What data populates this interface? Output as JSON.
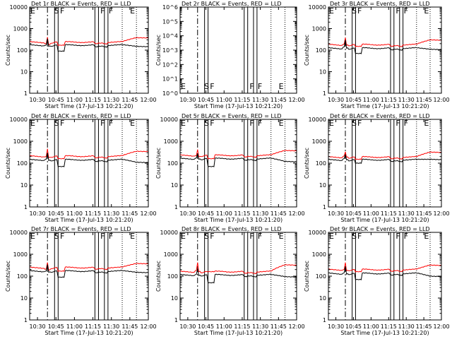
{
  "colors": {
    "background": "#ffffff",
    "events": "#000000",
    "lld": "#ff0000",
    "axis": "#000000"
  },
  "chart_data": [
    {
      "type": "line",
      "detector": "1r",
      "title": "Det 1r  BLACK = Events, RED = LLD",
      "xlabel": "Start Time (17-Jul-13 10:21:20)",
      "ylabel": "Counts/sec",
      "scale": "log",
      "ylim": [
        1,
        10000
      ],
      "yticks": [
        "1",
        "10",
        "100",
        "1000",
        "10000"
      ],
      "xlim_min": [
        0,
        100
      ],
      "xticks": [
        "10:30",
        "10:45",
        "11:00",
        "11:15",
        "11:30",
        "11:45",
        "12:00"
      ],
      "markers": [
        {
          "label": "E",
          "x": 0
        },
        {
          "label": "S",
          "x": 20
        },
        {
          "label": "F",
          "x": 25
        },
        {
          "label": "F",
          "x": 59
        },
        {
          "label": "F",
          "x": 66
        },
        {
          "label": "E",
          "x": 84
        }
      ],
      "vlines_solid": [
        21,
        24,
        55,
        58,
        63,
        66
      ],
      "vline_dashdot": 15,
      "vlines_dotted": [
        78,
        90
      ],
      "events": {
        "base": 180,
        "pre": 170,
        "spike": 340,
        "dip": 90,
        "end": 150
      },
      "lld": {
        "base": 250,
        "pre": 200,
        "spike": 400,
        "dip": 170,
        "end": 380
      }
    },
    {
      "type": "line",
      "detector": "2r",
      "title": "Det 2r  BLACK = Events, RED = LLD",
      "xlabel": "Start Time (17-Jul-13 10:21:20)",
      "ylabel": "Counts/sec",
      "scale": "log",
      "ylim": [
        1,
        1000000
      ],
      "yticks": [
        "10^0",
        "10^1",
        "10^2",
        "10^3",
        "10^4",
        "10^5",
        "10^6"
      ],
      "xlim_min": [
        0,
        100
      ],
      "xticks": [
        "10:30",
        "10:45",
        "11:00",
        "11:15",
        "11:30",
        "11:45",
        "12:00"
      ],
      "markers": [
        {
          "label": "E",
          "x": 0
        },
        {
          "label": "S",
          "x": 20
        },
        {
          "label": "F",
          "x": 25
        },
        {
          "label": "F",
          "x": 59
        },
        {
          "label": "F",
          "x": 66
        },
        {
          "label": "E",
          "x": 84
        }
      ],
      "vlines_solid": [
        21,
        24,
        55,
        58,
        63,
        66
      ],
      "vline_dashdot": 15,
      "vlines_dotted": [
        78,
        90
      ],
      "events": null,
      "lld": null
    },
    {
      "type": "line",
      "detector": "3r",
      "title": "Det 3r  BLACK = Events, RED = LLD",
      "xlabel": "Start Time (17-Jul-13 10:21:20)",
      "ylabel": "Counts/sec",
      "scale": "log",
      "ylim": [
        1,
        10000
      ],
      "yticks": [
        "1",
        "10",
        "100",
        "1000",
        "10000"
      ],
      "xlim_min": [
        0,
        100
      ],
      "xticks": [
        "10:30",
        "10:45",
        "11:00",
        "11:15",
        "11:30",
        "11:45",
        "12:00"
      ],
      "markers": [
        {
          "label": "E",
          "x": 0
        },
        {
          "label": "S",
          "x": 20
        },
        {
          "label": "F",
          "x": 25
        },
        {
          "label": "F",
          "x": 59
        },
        {
          "label": "F",
          "x": 66
        },
        {
          "label": "E",
          "x": 84
        }
      ],
      "vlines_solid": [
        21,
        24,
        55,
        58,
        63,
        66
      ],
      "vline_dashdot": 15,
      "vlines_dotted": [
        78,
        90
      ],
      "events": {
        "base": 130,
        "pre": 140,
        "spike": 300,
        "dip": 70,
        "end": 110
      },
      "lld": {
        "base": 190,
        "pre": 190,
        "spike": 380,
        "dip": 150,
        "end": 300
      }
    },
    {
      "type": "line",
      "detector": "4r",
      "title": "Det 4r  BLACK = Events, RED = LLD",
      "xlabel": "Start Time (17-Jul-13 10:21:20)",
      "ylabel": "Counts/sec",
      "scale": "log",
      "ylim": [
        1,
        10000
      ],
      "yticks": [
        "1",
        "10",
        "100",
        "1000",
        "10000"
      ],
      "xlim_min": [
        0,
        100
      ],
      "xticks": [
        "10:30",
        "10:45",
        "11:00",
        "11:15",
        "11:30",
        "11:45",
        "12:00"
      ],
      "markers": [
        {
          "label": "E",
          "x": 0
        },
        {
          "label": "S",
          "x": 20
        },
        {
          "label": "F",
          "x": 25
        },
        {
          "label": "F",
          "x": 59
        },
        {
          "label": "F",
          "x": 66
        },
        {
          "label": "E",
          "x": 84
        }
      ],
      "vlines_solid": [
        21,
        24,
        55,
        58,
        63,
        66
      ],
      "vline_dashdot": 15,
      "vlines_dotted": [
        78,
        90
      ],
      "events": {
        "base": 150,
        "pre": 150,
        "spike": 300,
        "dip": 70,
        "end": 110
      },
      "lld": {
        "base": 220,
        "pre": 200,
        "spike": 450,
        "dip": 160,
        "end": 350
      }
    },
    {
      "type": "line",
      "detector": "5r",
      "title": "Det 5r  BLACK = Events, RED = LLD",
      "xlabel": "Start Time (17-Jul-13 10:21:20)",
      "ylabel": "Counts/sec",
      "scale": "log",
      "ylim": [
        1,
        10000
      ],
      "yticks": [
        "1",
        "10",
        "100",
        "1000",
        "10000"
      ],
      "xlim_min": [
        0,
        100
      ],
      "xticks": [
        "10:30",
        "10:45",
        "11:00",
        "11:15",
        "11:30",
        "11:45",
        "12:00"
      ],
      "markers": [
        {
          "label": "E",
          "x": 0
        },
        {
          "label": "S",
          "x": 20
        },
        {
          "label": "F",
          "x": 25
        },
        {
          "label": "F",
          "x": 59
        },
        {
          "label": "F",
          "x": 66
        },
        {
          "label": "E",
          "x": 84
        }
      ],
      "vlines_solid": [
        21,
        24,
        55,
        58,
        63,
        66
      ],
      "vline_dashdot": 15,
      "vlines_dotted": [
        78,
        90
      ],
      "events": {
        "base": 170,
        "pre": 170,
        "spike": 280,
        "dip": 70,
        "end": 120
      },
      "lld": {
        "base": 240,
        "pre": 220,
        "spike": 420,
        "dip": 160,
        "end": 380
      }
    },
    {
      "type": "line",
      "detector": "6r",
      "title": "Det 6r  BLACK = Events, RED = LLD",
      "xlabel": "Start Time (17-Jul-13 10:21:20)",
      "ylabel": "Counts/sec",
      "scale": "log",
      "ylim": [
        1,
        10000
      ],
      "yticks": [
        "1",
        "10",
        "100",
        "1000",
        "10000"
      ],
      "xlim_min": [
        0,
        100
      ],
      "xticks": [
        "10:30",
        "10:45",
        "11:00",
        "11:15",
        "11:30",
        "11:45",
        "12:00"
      ],
      "markers": [
        {
          "label": "E",
          "x": 0
        },
        {
          "label": "S",
          "x": 20
        },
        {
          "label": "F",
          "x": 25
        },
        {
          "label": "F",
          "x": 59
        },
        {
          "label": "F",
          "x": 66
        },
        {
          "label": "E",
          "x": 84
        }
      ],
      "vlines_solid": [
        21,
        24,
        55,
        58,
        63,
        66
      ],
      "vline_dashdot": 15,
      "vlines_dotted": [
        78,
        90
      ],
      "events": {
        "base": 150,
        "pre": 160,
        "spike": 250,
        "dip": 100,
        "end": 150
      },
      "lld": {
        "base": 200,
        "pre": 210,
        "spike": 330,
        "dip": 150,
        "end": 320
      }
    },
    {
      "type": "line",
      "detector": "7r",
      "title": "Det 7r  BLACK = Events, RED = LLD",
      "xlabel": "Start Time (17-Jul-13 10:21:20)",
      "ylabel": "Counts/sec",
      "scale": "log",
      "ylim": [
        1,
        10000
      ],
      "yticks": [
        "1",
        "10",
        "100",
        "1000",
        "10000"
      ],
      "xlim_min": [
        0,
        100
      ],
      "xticks": [
        "10:30",
        "10:45",
        "11:00",
        "11:15",
        "11:30",
        "11:45",
        "12:00"
      ],
      "markers": [
        {
          "label": "E",
          "x": 0
        },
        {
          "label": "S",
          "x": 20
        },
        {
          "label": "F",
          "x": 25
        },
        {
          "label": "F",
          "x": 59
        },
        {
          "label": "F",
          "x": 66
        },
        {
          "label": "E",
          "x": 84
        }
      ],
      "vlines_solid": [
        21,
        24,
        55,
        58,
        63,
        66
      ],
      "vline_dashdot": 15,
      "vlines_dotted": [
        78,
        90
      ],
      "events": {
        "base": 180,
        "pre": 170,
        "spike": 340,
        "dip": 90,
        "end": 150
      },
      "lld": {
        "base": 260,
        "pre": 210,
        "spike": 420,
        "dip": 170,
        "end": 380
      }
    },
    {
      "type": "line",
      "detector": "8r",
      "title": "Det 8r  BLACK = Events, RED = LLD",
      "xlabel": "Start Time (17-Jul-13 10:21:20)",
      "ylabel": "Counts/sec",
      "scale": "log",
      "ylim": [
        1,
        10000
      ],
      "yticks": [
        "1",
        "10",
        "100",
        "1000",
        "10000"
      ],
      "xlim_min": [
        0,
        100
      ],
      "xticks": [
        "10:30",
        "10:45",
        "11:00",
        "11:15",
        "11:30",
        "11:45",
        "12:00"
      ],
      "markers": [
        {
          "label": "E",
          "x": 0
        },
        {
          "label": "S",
          "x": 20
        },
        {
          "label": "F",
          "x": 25
        },
        {
          "label": "F",
          "x": 59
        },
        {
          "label": "F",
          "x": 66
        },
        {
          "label": "E",
          "x": 84
        }
      ],
      "vlines_solid": [
        21,
        24,
        55,
        58,
        63,
        66
      ],
      "vline_dashdot": 15,
      "vlines_dotted": [
        78,
        90
      ],
      "events": {
        "base": 120,
        "pre": 120,
        "spike": 220,
        "dip": 50,
        "end": 95
      },
      "lld": {
        "base": 170,
        "pre": 180,
        "spike": 420,
        "dip": 160,
        "end": 330
      }
    },
    {
      "type": "line",
      "detector": "9r",
      "title": "Det 9r  BLACK = Events, RED = LLD",
      "xlabel": "Start Time (17-Jul-13 10:21:20)",
      "ylabel": "Counts/sec",
      "scale": "log",
      "ylim": [
        1,
        10000
      ],
      "yticks": [
        "1",
        "10",
        "100",
        "1000",
        "10000"
      ],
      "xlim_min": [
        0,
        100
      ],
      "xticks": [
        "10:30",
        "10:45",
        "11:00",
        "11:15",
        "11:30",
        "11:45",
        "12:00"
      ],
      "markers": [
        {
          "label": "E",
          "x": 0
        },
        {
          "label": "S",
          "x": 20
        },
        {
          "label": "F",
          "x": 25
        },
        {
          "label": "F",
          "x": 59
        },
        {
          "label": "F",
          "x": 66
        },
        {
          "label": "E",
          "x": 84
        }
      ],
      "vlines_solid": [
        21,
        24,
        55,
        58,
        63,
        66
      ],
      "vline_dashdot": 15,
      "vlines_dotted": [
        78,
        90
      ],
      "events": {
        "base": 140,
        "pre": 140,
        "spike": 280,
        "dip": 70,
        "end": 100
      },
      "lld": {
        "base": 210,
        "pre": 200,
        "spike": 420,
        "dip": 160,
        "end": 320
      }
    }
  ]
}
